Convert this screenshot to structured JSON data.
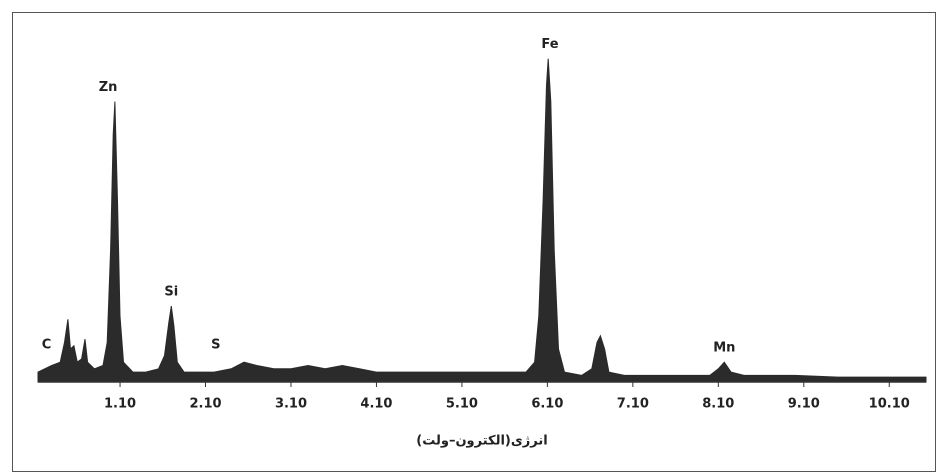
{
  "chart_data": {
    "type": "area",
    "x_label": "انرژی(الکترون–ولت)",
    "x": [
      0.14,
      0.3,
      0.4,
      0.45,
      0.49,
      0.52,
      0.56,
      0.6,
      0.65,
      0.69,
      0.72,
      0.8,
      0.9,
      0.95,
      0.99,
      1.02,
      1.04,
      1.07,
      1.1,
      1.14,
      1.25,
      1.4,
      1.55,
      1.62,
      1.67,
      1.7,
      1.73,
      1.77,
      1.85,
      2.0,
      2.2,
      2.4,
      2.55,
      2.7,
      2.9,
      3.1,
      3.3,
      3.5,
      3.7,
      3.9,
      4.1,
      4.4,
      4.7,
      5.0,
      5.3,
      5.6,
      5.85,
      5.95,
      6.0,
      6.05,
      6.09,
      6.11,
      6.14,
      6.18,
      6.23,
      6.3,
      6.5,
      6.62,
      6.68,
      6.72,
      6.77,
      6.82,
      7.0,
      7.5,
      8.0,
      8.1,
      8.17,
      8.25,
      8.4,
      9.0,
      9.5,
      10.0,
      10.53
    ],
    "values": [
      3,
      5,
      6,
      12,
      19,
      10,
      11,
      6,
      7,
      13,
      6,
      4,
      5,
      12,
      40,
      75,
      85,
      55,
      20,
      6,
      3,
      3,
      4,
      8,
      18,
      23,
      17,
      6,
      3,
      3,
      3,
      4,
      6,
      5,
      4,
      4,
      5,
      4,
      5,
      4,
      3,
      3,
      3,
      3,
      3,
      3,
      3,
      6,
      20,
      55,
      90,
      98,
      85,
      40,
      10,
      3,
      2,
      4,
      12,
      14,
      10,
      3,
      2,
      2,
      2,
      4,
      6,
      3,
      2,
      2,
      1.5,
      1.5,
      1.5
    ],
    "color": "#2b2b2b",
    "xlim": [
      0.14,
      10.53
    ],
    "ylim": [
      0,
      100
    ],
    "xticks": [
      {
        "value": 1.1,
        "label": "1.10"
      },
      {
        "value": 2.1,
        "label": "2.10"
      },
      {
        "value": 3.1,
        "label": "3.10"
      },
      {
        "value": 4.1,
        "label": "4.10"
      },
      {
        "value": 5.1,
        "label": "5.10"
      },
      {
        "value": 6.1,
        "label": "6.10"
      },
      {
        "value": 7.1,
        "label": "7.10"
      },
      {
        "value": 8.1,
        "label": "8.10"
      },
      {
        "value": 9.1,
        "label": "9.10"
      },
      {
        "value": 10.1,
        "label": "10.10"
      }
    ],
    "annotations": [
      {
        "text": "C",
        "x": 0.24,
        "y": 7
      },
      {
        "text": "Zn",
        "x": 0.96,
        "y": 85
      },
      {
        "text": "Si",
        "x": 1.7,
        "y": 23
      },
      {
        "text": "S",
        "x": 2.22,
        "y": 7
      },
      {
        "text": "Fe",
        "x": 6.13,
        "y": 98
      },
      {
        "text": "Mn",
        "x": 8.17,
        "y": 6
      }
    ]
  }
}
